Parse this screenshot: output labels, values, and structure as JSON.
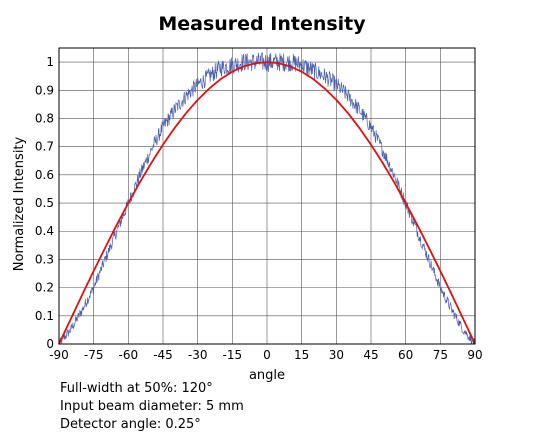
{
  "chart_data": {
    "type": "line",
    "title": "Measured Intensity",
    "xlabel": "angle",
    "ylabel": "Normalized Intensity",
    "xlim": [
      -90,
      90
    ],
    "ylim": [
      0,
      1.05
    ],
    "x_ticks": [
      -90,
      -75,
      -60,
      -45,
      -30,
      -15,
      0,
      15,
      30,
      45,
      60,
      75,
      90
    ],
    "y_ticks": [
      0,
      0.1,
      0.2,
      0.3,
      0.4,
      0.5,
      0.6,
      0.7,
      0.8,
      0.9,
      1
    ],
    "grid": true,
    "series": [
      {
        "color": "#4a5fb0",
        "style": "noisy",
        "x": [
          -90,
          -85,
          -80,
          -75,
          -70,
          -65,
          -60,
          -55,
          -50,
          -45,
          -40,
          -35,
          -30,
          -25,
          -20,
          -15,
          -10,
          -5,
          0,
          5,
          10,
          15,
          20,
          25,
          30,
          35,
          40,
          45,
          50,
          55,
          60,
          65,
          70,
          75,
          80,
          85,
          90
        ],
        "y": [
          0.0,
          0.05,
          0.12,
          0.2,
          0.3,
          0.4,
          0.5,
          0.6,
          0.69,
          0.77,
          0.83,
          0.88,
          0.92,
          0.95,
          0.98,
          0.99,
          1.0,
          1.0,
          1.0,
          1.0,
          1.0,
          0.99,
          0.97,
          0.95,
          0.92,
          0.88,
          0.83,
          0.77,
          0.69,
          0.6,
          0.5,
          0.4,
          0.3,
          0.2,
          0.12,
          0.05,
          0.0
        ]
      },
      {
        "color": "#e01010",
        "style": "smooth",
        "x": [
          -90,
          -85,
          -80,
          -75,
          -70,
          -65,
          -60,
          -55,
          -50,
          -45,
          -40,
          -35,
          -30,
          -25,
          -20,
          -15,
          -10,
          -5,
          0,
          5,
          10,
          15,
          20,
          25,
          30,
          35,
          40,
          45,
          50,
          55,
          60,
          65,
          70,
          75,
          80,
          85,
          90
        ],
        "y": [
          0.0,
          0.087,
          0.174,
          0.259,
          0.342,
          0.423,
          0.5,
          0.574,
          0.643,
          0.707,
          0.766,
          0.819,
          0.866,
          0.906,
          0.94,
          0.966,
          0.985,
          0.996,
          1.0,
          0.996,
          0.985,
          0.966,
          0.94,
          0.906,
          0.866,
          0.819,
          0.766,
          0.707,
          0.643,
          0.574,
          0.5,
          0.423,
          0.342,
          0.259,
          0.174,
          0.087,
          0.0
        ]
      }
    ]
  },
  "notes": {
    "line1": "Full-width at 50%: 120°",
    "line2": "Input beam diameter: 5 mm",
    "line3": "Detector angle: 0.25°"
  }
}
